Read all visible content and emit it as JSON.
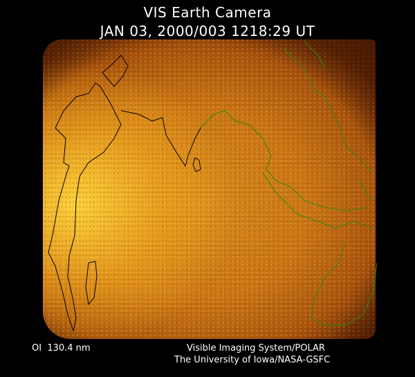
{
  "title": "VIS Earth Camera",
  "timestamp": "JAN 03, 2000/003 1218:29 UT",
  "footer": {
    "wavelength": "OI  130.4 nm",
    "instrument": "Visible Imaging System/POLAR",
    "credit": "The University of Iowa/NASA-GSFC"
  },
  "colors": {
    "background": "#000000",
    "coastline_day": "#000000",
    "coastline_far": "#2a8a10",
    "glow_bright": "#ffd83c",
    "glow_dark": "#a8520c"
  }
}
